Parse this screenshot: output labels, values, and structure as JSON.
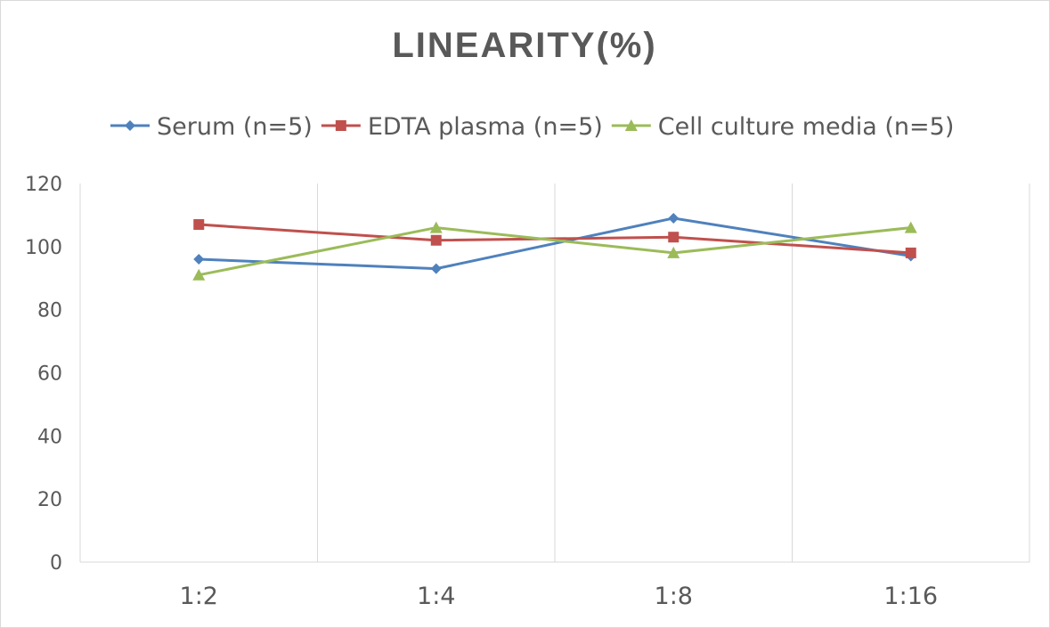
{
  "chart_data": {
    "type": "line",
    "title": "LINEARITY(%)",
    "categories": [
      "1:2",
      "1:4",
      "1:8",
      "1:16"
    ],
    "ylim": [
      0,
      120
    ],
    "yticks": [
      0,
      20,
      40,
      60,
      80,
      100,
      120
    ],
    "grid": "vertical",
    "legend_position": "top",
    "series": [
      {
        "name": "Serum (n=5)",
        "color": "#4f81bd",
        "marker": "diamond",
        "values": [
          96,
          93,
          109,
          97
        ]
      },
      {
        "name": "EDTA plasma (n=5)",
        "color": "#c0504d",
        "marker": "square",
        "values": [
          107,
          102,
          103,
          98
        ]
      },
      {
        "name": "Cell culture media (n=5)",
        "color": "#9bbb59",
        "marker": "triangle",
        "values": [
          91,
          106,
          98,
          106
        ]
      }
    ]
  }
}
